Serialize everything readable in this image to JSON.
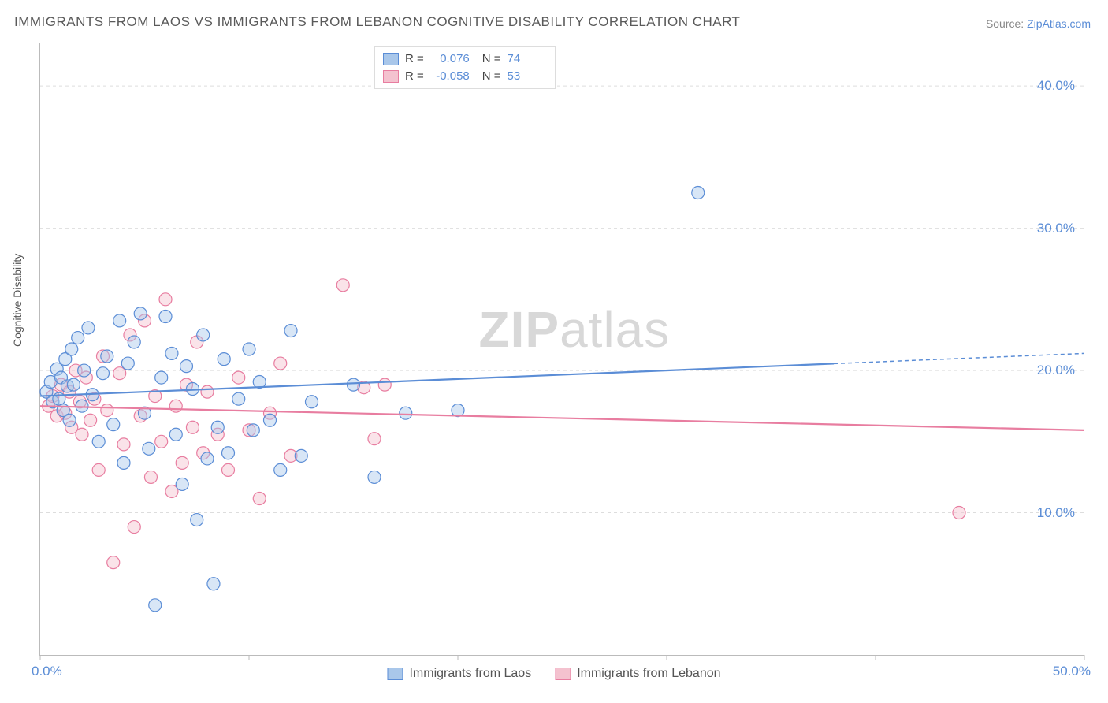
{
  "title": "IMMIGRANTS FROM LAOS VS IMMIGRANTS FROM LEBANON COGNITIVE DISABILITY CORRELATION CHART",
  "source_prefix": "Source: ",
  "source_link": "ZipAtlas.com",
  "ylabel": "Cognitive Disability",
  "watermark_bold": "ZIP",
  "watermark_light": "atlas",
  "chart": {
    "type": "scatter",
    "xlim": [
      0,
      50
    ],
    "ylim": [
      0,
      43
    ],
    "xtick_positions": [
      0,
      10,
      20,
      30,
      40,
      50
    ],
    "xtick_labels": {
      "0": "0.0%",
      "50": "50.0%"
    },
    "ytick_positions": [
      10,
      20,
      30,
      40
    ],
    "ytick_labels": {
      "10": "10.0%",
      "20": "20.0%",
      "30": "30.0%",
      "40": "40.0%"
    },
    "background_color": "#ffffff",
    "grid_color": "#dddddd",
    "axis_color": "#bbbbbb",
    "marker_radius": 8,
    "marker_opacity": 0.45,
    "series": [
      {
        "name": "Immigrants from Laos",
        "color_fill": "#a9c7ea",
        "color_stroke": "#5b8dd6",
        "r_value": "0.076",
        "n_value": "74",
        "trend": {
          "x1": 0,
          "y1": 18.2,
          "x2": 50,
          "y2": 21.2,
          "solid_until_x": 38
        },
        "points": [
          [
            0.3,
            18.5
          ],
          [
            0.5,
            19.2
          ],
          [
            0.6,
            17.8
          ],
          [
            0.8,
            20.1
          ],
          [
            0.9,
            18.0
          ],
          [
            1.0,
            19.5
          ],
          [
            1.1,
            17.2
          ],
          [
            1.2,
            20.8
          ],
          [
            1.3,
            18.9
          ],
          [
            1.4,
            16.5
          ],
          [
            1.5,
            21.5
          ],
          [
            1.6,
            19.0
          ],
          [
            1.8,
            22.3
          ],
          [
            2.0,
            17.5
          ],
          [
            2.1,
            20.0
          ],
          [
            2.3,
            23.0
          ],
          [
            2.5,
            18.3
          ],
          [
            2.8,
            15.0
          ],
          [
            3.0,
            19.8
          ],
          [
            3.2,
            21.0
          ],
          [
            3.5,
            16.2
          ],
          [
            3.8,
            23.5
          ],
          [
            4.0,
            13.5
          ],
          [
            4.2,
            20.5
          ],
          [
            4.5,
            22.0
          ],
          [
            4.8,
            24.0
          ],
          [
            5.0,
            17.0
          ],
          [
            5.2,
            14.5
          ],
          [
            5.5,
            3.5
          ],
          [
            5.8,
            19.5
          ],
          [
            6.0,
            23.8
          ],
          [
            6.3,
            21.2
          ],
          [
            6.5,
            15.5
          ],
          [
            6.8,
            12.0
          ],
          [
            7.0,
            20.3
          ],
          [
            7.3,
            18.7
          ],
          [
            7.5,
            9.5
          ],
          [
            7.8,
            22.5
          ],
          [
            8.0,
            13.8
          ],
          [
            8.3,
            5.0
          ],
          [
            8.5,
            16.0
          ],
          [
            8.8,
            20.8
          ],
          [
            9.0,
            14.2
          ],
          [
            9.5,
            18.0
          ],
          [
            10.0,
            21.5
          ],
          [
            10.2,
            15.8
          ],
          [
            10.5,
            19.2
          ],
          [
            11.0,
            16.5
          ],
          [
            11.5,
            13.0
          ],
          [
            12.0,
            22.8
          ],
          [
            12.5,
            14.0
          ],
          [
            13.0,
            17.8
          ],
          [
            15.0,
            19.0
          ],
          [
            16.0,
            12.5
          ],
          [
            17.5,
            17.0
          ],
          [
            20.0,
            17.2
          ],
          [
            31.5,
            32.5
          ]
        ]
      },
      {
        "name": "Immigrants from Lebanon",
        "color_fill": "#f4c2cf",
        "color_stroke": "#e87da0",
        "r_value": "-0.058",
        "n_value": "53",
        "trend": {
          "x1": 0,
          "y1": 17.5,
          "x2": 50,
          "y2": 15.8,
          "solid_until_x": 50
        },
        "points": [
          [
            0.4,
            17.5
          ],
          [
            0.6,
            18.2
          ],
          [
            0.8,
            16.8
          ],
          [
            1.0,
            19.0
          ],
          [
            1.2,
            17.0
          ],
          [
            1.4,
            18.5
          ],
          [
            1.5,
            16.0
          ],
          [
            1.7,
            20.0
          ],
          [
            1.9,
            17.8
          ],
          [
            2.0,
            15.5
          ],
          [
            2.2,
            19.5
          ],
          [
            2.4,
            16.5
          ],
          [
            2.6,
            18.0
          ],
          [
            2.8,
            13.0
          ],
          [
            3.0,
            21.0
          ],
          [
            3.2,
            17.2
          ],
          [
            3.5,
            6.5
          ],
          [
            3.8,
            19.8
          ],
          [
            4.0,
            14.8
          ],
          [
            4.3,
            22.5
          ],
          [
            4.5,
            9.0
          ],
          [
            4.8,
            16.8
          ],
          [
            5.0,
            23.5
          ],
          [
            5.3,
            12.5
          ],
          [
            5.5,
            18.2
          ],
          [
            5.8,
            15.0
          ],
          [
            6.0,
            25.0
          ],
          [
            6.3,
            11.5
          ],
          [
            6.5,
            17.5
          ],
          [
            6.8,
            13.5
          ],
          [
            7.0,
            19.0
          ],
          [
            7.3,
            16.0
          ],
          [
            7.5,
            22.0
          ],
          [
            7.8,
            14.2
          ],
          [
            8.0,
            18.5
          ],
          [
            8.5,
            15.5
          ],
          [
            9.0,
            13.0
          ],
          [
            9.5,
            19.5
          ],
          [
            10.0,
            15.8
          ],
          [
            10.5,
            11.0
          ],
          [
            11.0,
            17.0
          ],
          [
            11.5,
            20.5
          ],
          [
            12.0,
            14.0
          ],
          [
            14.5,
            26.0
          ],
          [
            15.5,
            18.8
          ],
          [
            16.0,
            15.2
          ],
          [
            16.5,
            19.0
          ],
          [
            44.0,
            10.0
          ]
        ]
      }
    ]
  },
  "legend_labels": {
    "r": "R =",
    "n": "N ="
  },
  "bottom_legend": [
    {
      "label": "Immigrants from Laos",
      "fill": "#a9c7ea",
      "stroke": "#5b8dd6"
    },
    {
      "label": "Immigrants from Lebanon",
      "fill": "#f4c2cf",
      "stroke": "#e87da0"
    }
  ]
}
